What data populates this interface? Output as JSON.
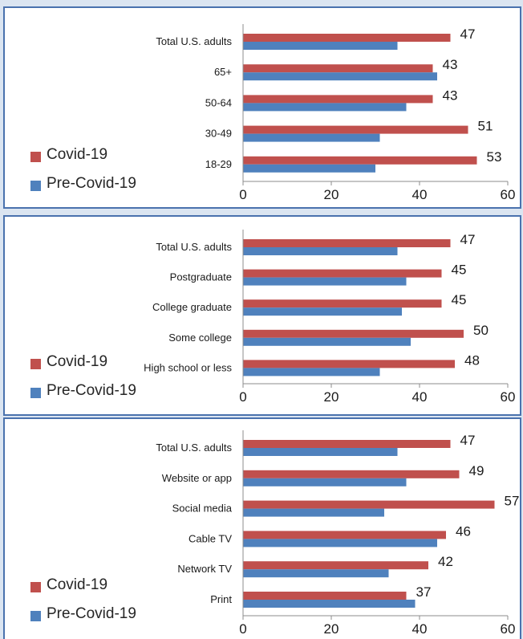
{
  "colors": {
    "covid": "#c0504d",
    "pre_covid": "#4f81bd",
    "axis": "#8c8c8c",
    "frame": "#4a72ae"
  },
  "legend": {
    "covid": "Covid-19",
    "pre_covid": "Pre-Covid-19"
  },
  "chart_data": [
    {
      "type": "bar",
      "orientation": "horizontal",
      "categories": [
        "Total U.S. adults",
        "65+",
        "50-64",
        "30-49",
        "18-29"
      ],
      "series": [
        {
          "name": "Covid-19",
          "values": [
            47,
            43,
            43,
            51,
            53
          ]
        },
        {
          "name": "Pre-Covid-19",
          "values": [
            35,
            44,
            37,
            31,
            30
          ]
        }
      ],
      "data_labels": [
        "47",
        "43",
        "43",
        "51",
        "53"
      ],
      "xlim": [
        0,
        60
      ],
      "xticks": [
        "0",
        "20",
        "40",
        "60"
      ],
      "grid": false,
      "legend_position": "bottom-left"
    },
    {
      "type": "bar",
      "orientation": "horizontal",
      "categories": [
        "Total U.S. adults",
        "Postgraduate",
        "College graduate",
        "Some college",
        "High school or less"
      ],
      "series": [
        {
          "name": "Covid-19",
          "values": [
            47,
            45,
            45,
            50,
            48
          ]
        },
        {
          "name": "Pre-Covid-19",
          "values": [
            35,
            37,
            36,
            38,
            31
          ]
        }
      ],
      "data_labels": [
        "47",
        "45",
        "45",
        "50",
        "48"
      ],
      "xlim": [
        0,
        60
      ],
      "xticks": [
        "0",
        "20",
        "40",
        "60"
      ],
      "grid": false,
      "legend_position": "bottom-left"
    },
    {
      "type": "bar",
      "orientation": "horizontal",
      "categories": [
        "Total U.S. adults",
        "Website or app",
        "Social media",
        "Cable TV",
        "Network TV",
        "Print"
      ],
      "series": [
        {
          "name": "Covid-19",
          "values": [
            47,
            49,
            57,
            46,
            42,
            37
          ]
        },
        {
          "name": "Pre-Covid-19",
          "values": [
            35,
            37,
            32,
            44,
            33,
            39
          ]
        }
      ],
      "data_labels": [
        "47",
        "49",
        "57",
        "46",
        "42",
        "37"
      ],
      "xlim": [
        0,
        60
      ],
      "xticks": [
        "0",
        "20",
        "40",
        "60"
      ],
      "grid": false,
      "legend_position": "bottom-left"
    }
  ]
}
